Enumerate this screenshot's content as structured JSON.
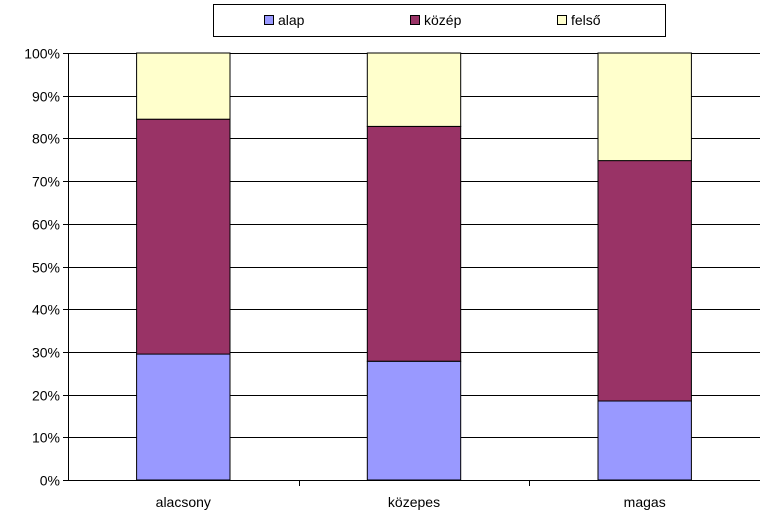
{
  "chart_data": {
    "type": "bar",
    "stacked": true,
    "percent_stacked": true,
    "categories": [
      "alacsony",
      "közepes",
      "magas"
    ],
    "series": [
      {
        "name": "alap",
        "color": "#9999FF",
        "values": [
          29.5,
          27.8,
          18.5
        ]
      },
      {
        "name": "közép",
        "color": "#993366",
        "values": [
          55.0,
          55.0,
          56.3
        ]
      },
      {
        "name": "felső",
        "color": "#FFFFCC",
        "values": [
          15.5,
          17.2,
          25.2
        ]
      }
    ],
    "y_ticks": [
      "0%",
      "10%",
      "20%",
      "30%",
      "40%",
      "50%",
      "60%",
      "70%",
      "80%",
      "90%",
      "100%"
    ],
    "ylim": [
      0,
      100
    ],
    "grid": true,
    "legend_position": "top"
  }
}
